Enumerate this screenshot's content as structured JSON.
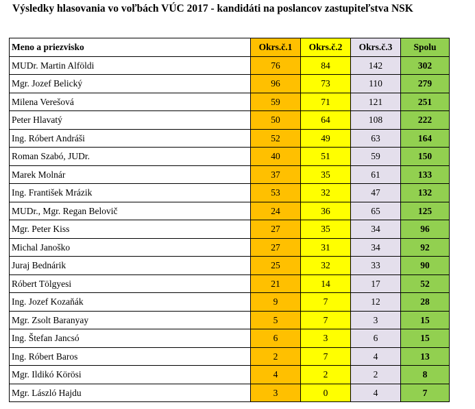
{
  "title": "Výsledky hlasovania vo voľbách VÚC 2017 - kandidáti na poslancov zastupiteľstva NSK",
  "table": {
    "headers": [
      "Meno a priezvisko",
      "Okrs.č.1",
      "Okrs.č.2",
      "Okrs.č.3",
      "Spolu"
    ],
    "rows": [
      [
        "MUDr. Martin Alföldi",
        "76",
        "84",
        "142",
        "302"
      ],
      [
        "Mgr. Jozef Belický",
        "96",
        "73",
        "110",
        "279"
      ],
      [
        "Milena Verešová",
        "59",
        "71",
        "121",
        "251"
      ],
      [
        "Peter Hlavatý",
        "50",
        "64",
        "108",
        "222"
      ],
      [
        "Ing. Róbert Andráši",
        "52",
        "49",
        "63",
        "164"
      ],
      [
        "Roman Szabó, JUDr.",
        "40",
        "51",
        "59",
        "150"
      ],
      [
        "Marek Molnár",
        "37",
        "35",
        "61",
        "133"
      ],
      [
        "Ing. František Mrázik",
        "53",
        "32",
        "47",
        "132"
      ],
      [
        "MUDr., Mgr. Regan Belovič",
        "24",
        "36",
        "65",
        "125"
      ],
      [
        "Mgr. Peter Kiss",
        "27",
        "35",
        "34",
        "96"
      ],
      [
        "Michal Janoško",
        "27",
        "31",
        "34",
        "92"
      ],
      [
        "Juraj Bednárik",
        "25",
        "32",
        "33",
        "90"
      ],
      [
        "Róbert Tölgyesi",
        "21",
        "14",
        "17",
        "52"
      ],
      [
        "Ing. Jozef Kozaňák",
        "9",
        "7",
        "12",
        "28"
      ],
      [
        "Mgr. Zsolt Baranyay",
        "5",
        "7",
        "3",
        "15"
      ],
      [
        "Ing. Štefan Jancsó",
        "6",
        "3",
        "6",
        "15"
      ],
      [
        "Ing. Róbert Baros",
        "2",
        "7",
        "4",
        "13"
      ],
      [
        "Mgr. Ildikó Körösi",
        "4",
        "2",
        "2",
        "8"
      ],
      [
        "Mgr. László Hajdu",
        "3",
        "0",
        "4",
        "7"
      ]
    ]
  },
  "colors": {
    "okrsok1": "#FFC000",
    "okrsok2": "#FFFF00",
    "okrsok3": "#E4DFEC",
    "spolu": "#92D050"
  }
}
